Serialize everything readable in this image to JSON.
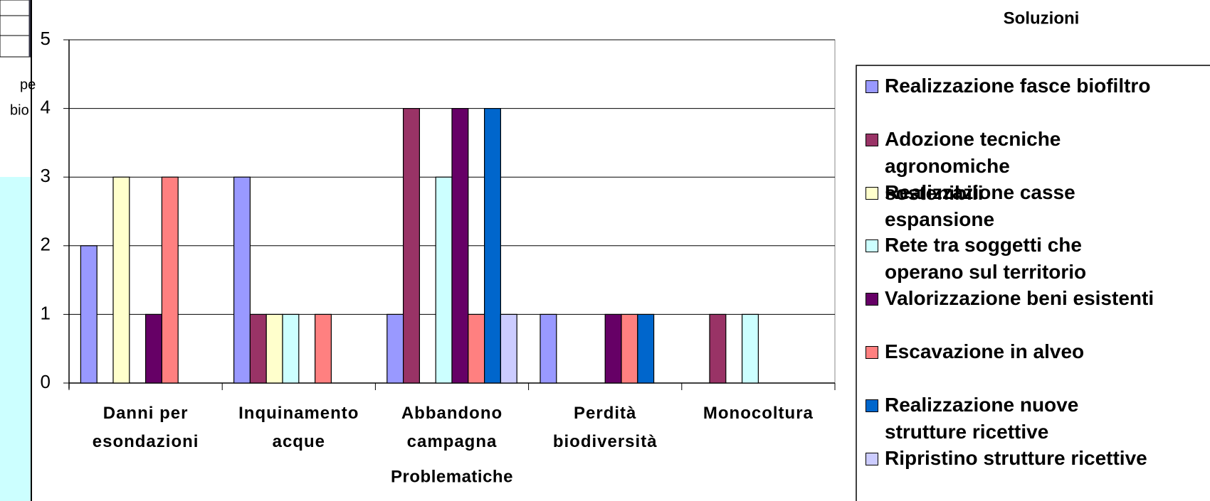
{
  "background": {
    "texts": [
      "pe",
      "bio"
    ]
  },
  "chart_data": {
    "type": "bar",
    "legend_title": "Soluzioni",
    "xlabel": "Problematiche",
    "categories": [
      "Danni per esondazioni",
      "Inquinamento acque",
      "Abbandono campagna",
      "Perdità biodiversità",
      "Monocoltura"
    ],
    "series": [
      {
        "name": "Realizzazione fasce biofiltro",
        "color": "#9999ff",
        "values": [
          2,
          3,
          1,
          1,
          0
        ]
      },
      {
        "name": "Adozione tecniche agronomiche sostenibili",
        "color": "#993366",
        "values": [
          0,
          1,
          4,
          0,
          1
        ]
      },
      {
        "name": "Realizzazione casse espansione",
        "color": "#ffffcc",
        "values": [
          3,
          1,
          0,
          0,
          0
        ]
      },
      {
        "name": "Rete tra soggetti che operano sul territorio",
        "color": "#ccffff",
        "values": [
          0,
          1,
          3,
          0,
          1
        ]
      },
      {
        "name": "Valorizzazione beni esistenti",
        "color": "#660066",
        "values": [
          1,
          0,
          4,
          1,
          0
        ]
      },
      {
        "name": "Escavazione in alveo",
        "color": "#ff8080",
        "values": [
          3,
          1,
          1,
          1,
          0
        ]
      },
      {
        "name": "Realizzazione nuove strutture ricettive",
        "color": "#0066cc",
        "values": [
          0,
          0,
          4,
          1,
          0
        ]
      },
      {
        "name": "Ripristino strutture ricettive",
        "color": "#ccccff",
        "values": [
          0,
          0,
          1,
          0,
          0
        ]
      }
    ],
    "ylim": [
      0,
      5
    ],
    "yticks": [
      0,
      1,
      2,
      3,
      4,
      5
    ],
    "grid": true,
    "legend": "right"
  }
}
